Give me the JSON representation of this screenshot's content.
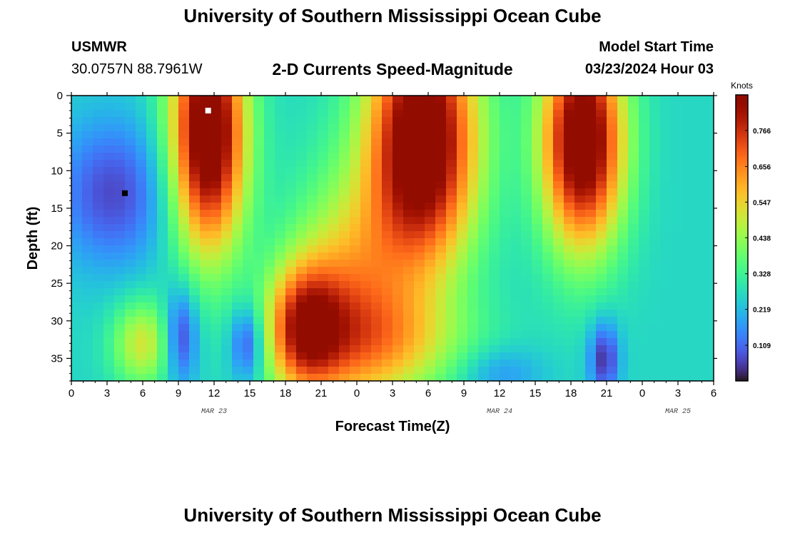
{
  "title": "University of Southern Mississippi Ocean Cube",
  "footer_title": "University of Southern Mississippi Ocean Cube",
  "station": {
    "id": "USMWR",
    "coords": "30.0757N  88.7961W"
  },
  "subtitle": "2-D Currents Speed-Magnitude",
  "model_start": {
    "label": "Model Start Time",
    "value": "03/23/2024 Hour 03"
  },
  "chart_data": {
    "type": "heatmap",
    "xlabel": "Forecast Time(Z)",
    "ylabel": "Depth (ft)",
    "x_range_hours": [
      0,
      54
    ],
    "x_ticks": [
      {
        "h": 0,
        "label": "0"
      },
      {
        "h": 3,
        "label": "3"
      },
      {
        "h": 6,
        "label": "6"
      },
      {
        "h": 9,
        "label": "9"
      },
      {
        "h": 12,
        "label": "12"
      },
      {
        "h": 15,
        "label": "15"
      },
      {
        "h": 18,
        "label": "18"
      },
      {
        "h": 21,
        "label": "21"
      },
      {
        "h": 24,
        "label": "0"
      },
      {
        "h": 27,
        "label": "3"
      },
      {
        "h": 30,
        "label": "6"
      },
      {
        "h": 33,
        "label": "9"
      },
      {
        "h": 36,
        "label": "12"
      },
      {
        "h": 39,
        "label": "15"
      },
      {
        "h": 42,
        "label": "18"
      },
      {
        "h": 45,
        "label": "21"
      },
      {
        "h": 48,
        "label": "0"
      },
      {
        "h": 51,
        "label": "3"
      },
      {
        "h": 54,
        "label": "6"
      }
    ],
    "date_labels": [
      {
        "h": 12,
        "label": "MAR 23"
      },
      {
        "h": 36,
        "label": "MAR 24"
      },
      {
        "h": 51,
        "label": "MAR 25"
      }
    ],
    "y_range_ft": [
      0,
      38
    ],
    "y_ticks": [
      0,
      5,
      10,
      15,
      20,
      25,
      30,
      35
    ],
    "colorbar": {
      "title": "Knots",
      "range": [
        0,
        0.875
      ],
      "ticks": [
        0.109,
        0.219,
        0.328,
        0.438,
        0.547,
        0.656,
        0.766
      ]
    },
    "markers": [
      {
        "name": "max",
        "hour": 11.5,
        "depth_ft": 2,
        "color": "#ffffff"
      },
      {
        "name": "min",
        "hour": 4.5,
        "depth_ft": 13,
        "color": "#000000"
      }
    ]
  }
}
